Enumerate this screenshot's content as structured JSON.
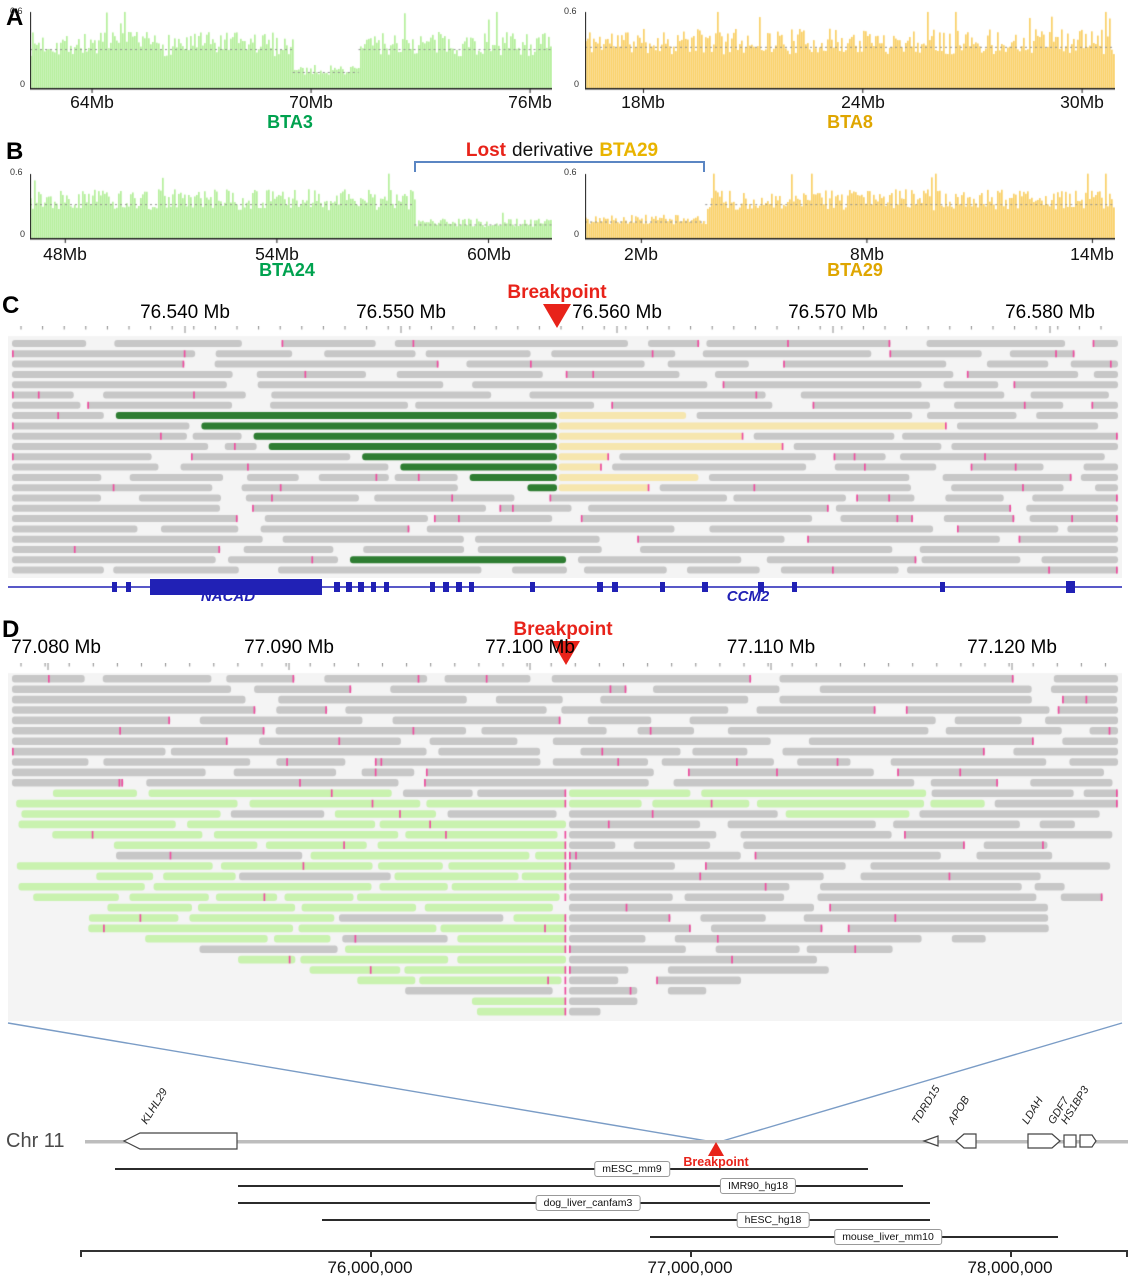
{
  "yaxis": {
    "max": "0.6",
    "min": "0"
  },
  "colors": {
    "green_fill": "#b6ef9d",
    "green_text": "#00a24f",
    "yellow_fill": "#fad169",
    "yellow_text": "#dfa600",
    "red": "#e8231a",
    "bracket_blue": "#5b86c3",
    "read_gray": "#c7c7c7",
    "read_green_dark": "#2e7d32",
    "read_yellow": "#f6e6ae",
    "read_green_light": "#c9f2af",
    "mismatch_pink": "#ee4fa0",
    "gene_blue": "#2121b5",
    "line_blue": "#7a9cc6"
  },
  "panelA": {
    "label": "A",
    "left": {
      "name": "BTA3",
      "ticks": [
        "64Mb",
        "70Mb",
        "76Mb"
      ],
      "tick_values": [
        64,
        70,
        76
      ],
      "domain": [
        62.3,
        76.6
      ],
      "segments": [
        {
          "from": 62.3,
          "to": 69.5,
          "level": 0.34
        },
        {
          "from": 69.5,
          "to": 71.3,
          "level": 0.14
        },
        {
          "from": 71.3,
          "to": 76.6,
          "level": 0.34
        }
      ]
    },
    "right": {
      "name": "BTA8",
      "ticks": [
        "18Mb",
        "24Mb",
        "30Mb"
      ],
      "tick_values": [
        18,
        24,
        30
      ],
      "domain": [
        16.4,
        30.9
      ],
      "segments": [
        {
          "from": 16.4,
          "to": 30.9,
          "level": 0.36
        }
      ]
    }
  },
  "panelB": {
    "label": "B",
    "title": {
      "lost": "Lost",
      "middle": "derivative",
      "bta": "BTA29"
    },
    "left": {
      "name": "BTA24",
      "ticks": [
        "48Mb",
        "54Mb",
        "60Mb"
      ],
      "tick_values": [
        48,
        54,
        60
      ],
      "domain": [
        47.0,
        61.8
      ],
      "segments": [
        {
          "from": 47.0,
          "to": 57.9,
          "level": 0.35
        },
        {
          "from": 57.9,
          "to": 61.8,
          "level": 0.14
        }
      ]
    },
    "right": {
      "name": "BTA29",
      "ticks": [
        "2Mb",
        "8Mb",
        "14Mb"
      ],
      "tick_values": [
        2,
        8,
        14
      ],
      "domain": [
        0.5,
        14.6
      ],
      "segments": [
        {
          "from": 0.5,
          "to": 3.7,
          "level": 0.17
        },
        {
          "from": 3.7,
          "to": 14.6,
          "level": 0.35
        }
      ]
    }
  },
  "panelC": {
    "label": "C",
    "breakpoint": "Breakpoint",
    "ruler": [
      "76.540 Mb",
      "76.550 Mb",
      "76.560 Mb",
      "76.570 Mb",
      "76.580 Mb"
    ],
    "genes": {
      "left": "NACAD",
      "right": "CCM2"
    }
  },
  "panelD": {
    "label": "D",
    "breakpoint": "Breakpoint",
    "ruler": [
      "77.080 Mb",
      "77.090 Mb",
      "77.100 Mb",
      "77.110 Mb",
      "77.120 Mb"
    ],
    "chr_label": "Chr 11",
    "chr_breakpoint": "Breakpoint",
    "chr_genes": [
      "KLHL29",
      "TDRD15",
      "APOB",
      "LDAH",
      "GDF7",
      "HS1BP3"
    ],
    "tracks": [
      "mESC_mm9",
      "IMR90_hg18",
      "dog_liver_canfam3",
      "hESC_hg18",
      "mouse_liver_mm10"
    ],
    "axis_labels": [
      "76,000,000",
      "77,000,000",
      "78,000,000"
    ]
  }
}
